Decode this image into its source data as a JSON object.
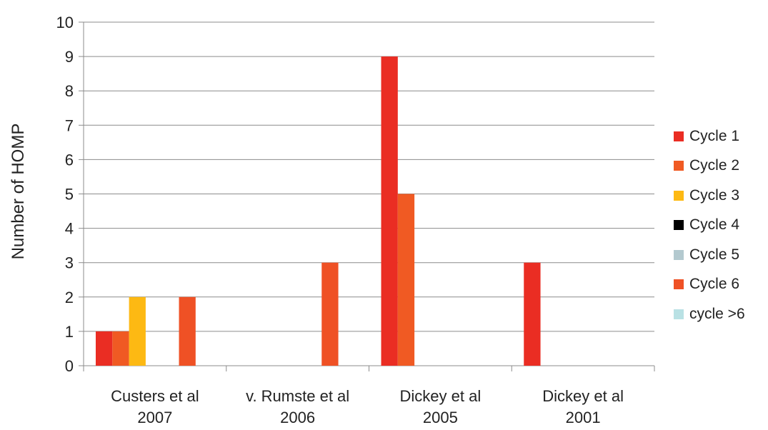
{
  "chart_data": {
    "type": "bar",
    "ylabel": "Number of HOMP",
    "xlabel": "",
    "ylim": [
      0,
      10
    ],
    "yticks": [
      0,
      1,
      2,
      3,
      4,
      5,
      6,
      7,
      8,
      9,
      10
    ],
    "grid": true,
    "legend_position": "right",
    "categories": [
      {
        "line1": "Custers et al",
        "line2": "2007"
      },
      {
        "line1": "v. Rumste et al",
        "line2": "2006"
      },
      {
        "line1": "Dickey et al",
        "line2": "2005"
      },
      {
        "line1": "Dickey et al",
        "line2": "2001"
      }
    ],
    "series": [
      {
        "name": "Cycle 1",
        "color": "#ea2d23",
        "values": [
          1,
          0,
          9,
          3
        ]
      },
      {
        "name": "Cycle 2",
        "color": "#f05a23",
        "values": [
          1,
          0,
          5,
          0
        ]
      },
      {
        "name": "Cycle 3",
        "color": "#fdb913",
        "values": [
          2,
          0,
          0,
          0
        ]
      },
      {
        "name": "Cycle 4",
        "color": "#000000",
        "values": [
          0,
          0,
          0,
          0
        ]
      },
      {
        "name": "Cycle 5",
        "color": "#b3c9cf",
        "values": [
          0,
          0,
          0,
          0
        ]
      },
      {
        "name": "Cycle 6",
        "color": "#ef5125",
        "values": [
          2,
          3,
          0,
          0
        ]
      },
      {
        "name": "cycle >6",
        "color": "#b9e1e4",
        "values": [
          0,
          0,
          0,
          0
        ]
      }
    ]
  }
}
